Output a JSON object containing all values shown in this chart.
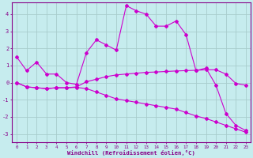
{
  "xlabel": "Windchill (Refroidissement éolien,°C)",
  "background_color": "#c6ecee",
  "line_color": "#cc00cc",
  "grid_color": "#a8cccc",
  "xlim": [
    -0.5,
    23.5
  ],
  "ylim": [
    -3.5,
    4.7
  ],
  "yticks": [
    -3,
    -2,
    -1,
    0,
    1,
    2,
    3,
    4
  ],
  "xticks": [
    0,
    1,
    2,
    3,
    4,
    5,
    6,
    7,
    8,
    9,
    10,
    11,
    12,
    13,
    14,
    15,
    16,
    17,
    18,
    19,
    20,
    21,
    22,
    23
  ],
  "series": [
    {
      "x": [
        0,
        1,
        2,
        3,
        4,
        5,
        6,
        7,
        8,
        9,
        10,
        11,
        12,
        13,
        14,
        15,
        16,
        17,
        18,
        19,
        20,
        21,
        22,
        23
      ],
      "y": [
        1.5,
        0.7,
        1.2,
        0.5,
        0.5,
        0.0,
        -0.1,
        1.75,
        2.5,
        2.2,
        1.9,
        4.5,
        4.2,
        4.0,
        3.3,
        3.3,
        3.6,
        2.8,
        0.7,
        0.85,
        -0.15,
        -1.8,
        -2.5,
        -2.8
      ]
    },
    {
      "x": [
        0,
        1,
        2,
        3,
        4,
        5,
        6,
        7,
        8,
        9,
        10,
        11,
        12,
        13,
        14,
        15,
        16,
        17,
        18,
        19,
        20,
        21,
        22,
        23
      ],
      "y": [
        0.0,
        -0.25,
        -0.3,
        -0.35,
        -0.3,
        -0.3,
        -0.25,
        0.05,
        0.2,
        0.35,
        0.45,
        0.5,
        0.55,
        0.6,
        0.62,
        0.65,
        0.68,
        0.7,
        0.72,
        0.75,
        0.75,
        0.5,
        -0.05,
        -0.15
      ]
    },
    {
      "x": [
        0,
        1,
        2,
        3,
        4,
        5,
        6,
        7,
        8,
        9,
        10,
        11,
        12,
        13,
        14,
        15,
        16,
        17,
        18,
        19,
        20,
        21,
        22,
        23
      ],
      "y": [
        0.0,
        -0.25,
        -0.3,
        -0.35,
        -0.3,
        -0.3,
        -0.28,
        -0.35,
        -0.55,
        -0.75,
        -0.95,
        -1.05,
        -1.15,
        -1.25,
        -1.35,
        -1.45,
        -1.55,
        -1.75,
        -1.95,
        -2.1,
        -2.3,
        -2.5,
        -2.7,
        -2.9
      ]
    }
  ]
}
